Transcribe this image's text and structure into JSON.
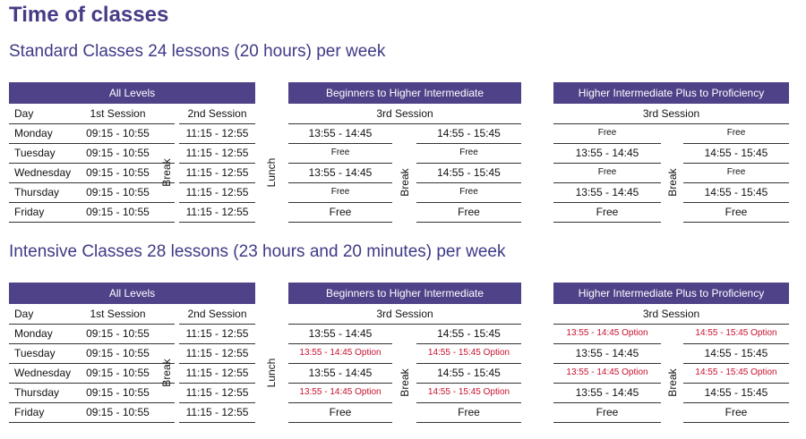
{
  "title": "Time of classes",
  "sections": [
    {
      "heading": "Standard Classes 24 lessons (20 hours) per week",
      "levels": {
        "header": "All Levels",
        "columns": [
          "Day",
          "1st Session",
          "2nd Session"
        ],
        "break": "Break",
        "rows": [
          [
            "Monday",
            "09:15 - 10:55",
            "11:15 - 12:55"
          ],
          [
            "Tuesday",
            "09:15 - 10:55",
            "11:15 - 12:55"
          ],
          [
            "Wednesday",
            "09:15 - 10:55",
            "11:15 - 12:55"
          ],
          [
            "Thursday",
            "09:15 - 10:55",
            "11:15 - 12:55"
          ],
          [
            "Friday",
            "09:15 - 10:55",
            "11:15 - 12:55"
          ]
        ]
      },
      "lunch": "Lunch",
      "groups": [
        {
          "header": "Beginners to Higher Intermediate",
          "session": "3rd Session",
          "break": "Break",
          "rows": [
            [
              "13:55 - 14:45",
              "14:55 - 15:45"
            ],
            [
              "Free",
              "Free"
            ],
            [
              "13:55 - 14:45",
              "14:55 - 15:45"
            ],
            [
              "Free",
              "Free"
            ],
            [
              "Free",
              "Free"
            ]
          ]
        },
        {
          "header": "Higher Intermediate Plus to Proficiency",
          "session": "3rd Session",
          "break": "Break",
          "rows": [
            [
              "Free",
              "Free"
            ],
            [
              "13:55 - 14:45",
              "14:55 - 15:45"
            ],
            [
              "Free",
              "Free"
            ],
            [
              "13:55 - 14:45",
              "14:55 - 15:45"
            ],
            [
              "Free",
              "Free"
            ]
          ]
        }
      ]
    },
    {
      "heading": "Intensive Classes 28 lessons (23 hours and 20 minutes) per week",
      "levels": {
        "header": "All Levels",
        "columns": [
          "Day",
          "1st Session",
          "2nd Session"
        ],
        "break": "Break",
        "rows": [
          [
            "Monday",
            "09:15 - 10:55",
            "11:15 - 12:55"
          ],
          [
            "Tuesday",
            "09:15 - 10:55",
            "11:15 - 12:55"
          ],
          [
            "Wednesday",
            "09:15 - 10:55",
            "11:15 - 12:55"
          ],
          [
            "Thursday",
            "09:15 - 10:55",
            "11:15 - 12:55"
          ],
          [
            "Friday",
            "09:15 - 10:55",
            "11:15 - 12:55"
          ]
        ]
      },
      "lunch": "Lunch",
      "groups": [
        {
          "header": "Beginners to Higher Intermediate",
          "session": "3rd Session",
          "break": "Break",
          "rows": [
            [
              "13:55 - 14:45",
              "14:55 - 15:45"
            ],
            [
              "13:55 - 14:45 Option",
              "14:55 - 15:45 Option"
            ],
            [
              "13:55 - 14:45",
              "14:55 - 15:45"
            ],
            [
              "13:55 - 14:45 Option",
              "14:55 - 15:45 Option"
            ],
            [
              "Free",
              "Free"
            ]
          ]
        },
        {
          "header": "Higher Intermediate Plus to Proficiency",
          "session": "3rd Session",
          "break": "Break",
          "rows": [
            [
              "13:55 - 14:45 Option",
              "14:55 - 15:45 Option"
            ],
            [
              "13:55 - 14:45",
              "14:55 - 15:45"
            ],
            [
              "13:55 - 14:45 Option",
              "14:55 - 15:45 Option"
            ],
            [
              "13:55 - 14:45",
              "14:55 - 15:45"
            ],
            [
              "Free",
              "Free"
            ]
          ]
        }
      ]
    }
  ]
}
